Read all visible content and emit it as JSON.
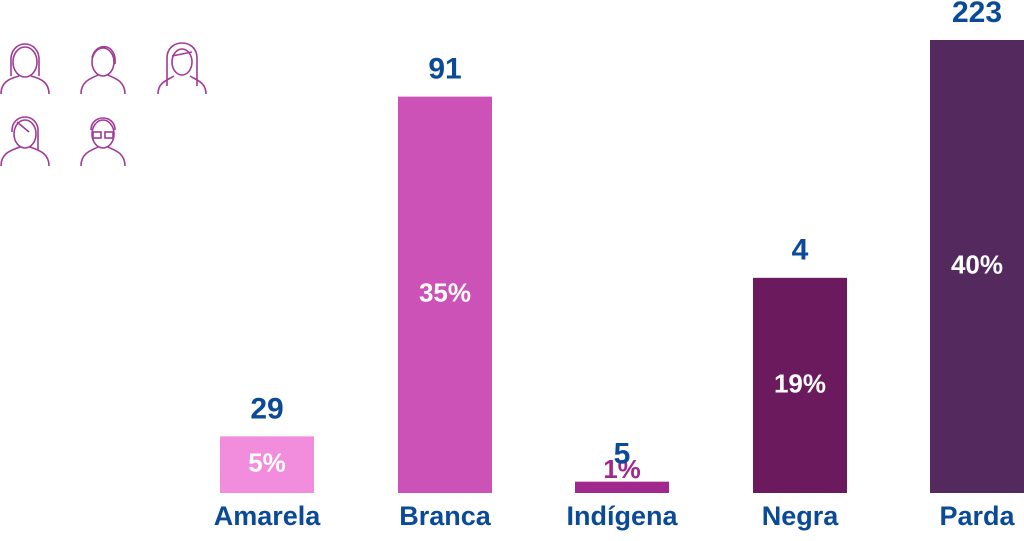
{
  "chart_data": {
    "type": "bar",
    "categories": [
      "Amarela",
      "Branca",
      "Indígena",
      "Negra",
      "Parda"
    ],
    "values": [
      5,
      35,
      1,
      19,
      40
    ],
    "value_labels": [
      "5%",
      "35%",
      "1%",
      "19%",
      "40%"
    ],
    "counts": [
      29,
      91,
      5,
      4,
      223
    ],
    "colors": [
      "#f28ddd",
      "#cc52b8",
      "#a0288e",
      "#6b1a5e",
      "#542a5e"
    ]
  }
}
